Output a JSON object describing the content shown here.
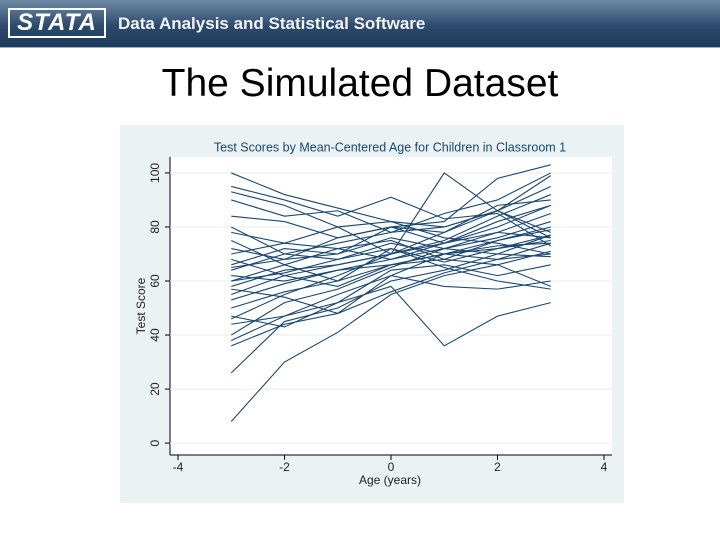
{
  "header": {
    "logo": "STATA",
    "tagline": "Data Analysis and Statistical Software"
  },
  "slide_title": "The Simulated Dataset",
  "chart_data": {
    "type": "line",
    "title": "Test Scores by Mean-Centered Age for Children in Classroom 1",
    "x_label": "Age (years)",
    "y_label": "Test Score",
    "x": [
      -3,
      -2,
      -1,
      0,
      1,
      2,
      3
    ],
    "xlim": [
      -4.15,
      4.15
    ],
    "xticks": [
      -4,
      -2,
      0,
      2,
      4
    ],
    "ylim": [
      -4.4,
      105.9
    ],
    "yticks": [
      0,
      20,
      40,
      60,
      80,
      100
    ],
    "grid": true,
    "series": [
      {
        "color": "#1a476f",
        "values": [
          8,
          30,
          41,
          55,
          62,
          66,
          71
        ]
      },
      {
        "color": "#1a476f",
        "values": [
          26,
          45,
          50,
          60,
          64,
          70,
          77
        ]
      },
      {
        "color": "#1a476f",
        "values": [
          36,
          44,
          48,
          56,
          63,
          68,
          74
        ]
      },
      {
        "color": "#1a476f",
        "values": [
          38,
          47,
          55,
          62,
          70,
          75,
          80
        ]
      },
      {
        "color": "#1a476f",
        "values": [
          40,
          52,
          57,
          65,
          72,
          78,
          85
        ]
      },
      {
        "color": "#1a476f",
        "values": [
          44,
          47,
          52,
          58,
          36,
          47,
          52
        ]
      },
      {
        "color": "#1a476f",
        "values": [
          46,
          55,
          62,
          70,
          75,
          84,
          92
        ]
      },
      {
        "color": "#1a476f",
        "values": [
          50,
          56,
          60,
          66,
          68,
          75,
          79
        ]
      },
      {
        "color": "#1a476f",
        "values": [
          53,
          59,
          64,
          68,
          72,
          76,
          82
        ]
      },
      {
        "color": "#1a476f",
        "values": [
          55,
          62,
          58,
          66,
          70,
          72,
          75
        ]
      },
      {
        "color": "#1a476f",
        "values": [
          58,
          64,
          66,
          70,
          74,
          80,
          88
        ]
      },
      {
        "color": "#1a476f",
        "values": [
          60,
          63,
          68,
          72,
          67,
          72,
          77
        ]
      },
      {
        "color": "#1a476f",
        "values": [
          62,
          60,
          64,
          66,
          70,
          68,
          70
        ]
      },
      {
        "color": "#1a476f",
        "values": [
          64,
          70,
          74,
          78,
          80,
          86,
          95
        ]
      },
      {
        "color": "#1a476f",
        "values": [
          66,
          72,
          70,
          76,
          72,
          70,
          69
        ]
      },
      {
        "color": "#1a476f",
        "values": [
          68,
          62,
          66,
          70,
          78,
          86,
          99
        ]
      },
      {
        "color": "#1a476f",
        "values": [
          70,
          74,
          72,
          68,
          74,
          78,
          76
        ]
      },
      {
        "color": "#1a476f",
        "values": [
          72,
          68,
          70,
          80,
          74,
          82,
          88
        ]
      },
      {
        "color": "#1a476f",
        "values": [
          75,
          66,
          60,
          72,
          65,
          60,
          57
        ]
      },
      {
        "color": "#1a476f",
        "values": [
          78,
          74,
          80,
          82,
          76,
          74,
          70
        ]
      },
      {
        "color": "#1a476f",
        "values": [
          80,
          70,
          68,
          74,
          70,
          73,
          74
        ]
      },
      {
        "color": "#1a476f",
        "values": [
          84,
          82,
          76,
          80,
          78,
          88,
          90
        ]
      },
      {
        "color": "#1a476f",
        "values": [
          90,
          84,
          86,
          78,
          85,
          90,
          100
        ]
      },
      {
        "color": "#1a476f",
        "values": [
          93,
          88,
          80,
          70,
          100,
          86,
          78
        ]
      },
      {
        "color": "#1a476f",
        "values": [
          95,
          90,
          84,
          91,
          83,
          85,
          73
        ]
      },
      {
        "color": "#1a476f",
        "values": [
          100,
          92,
          87,
          82,
          80,
          86,
          76
        ]
      },
      {
        "color": "#1a476f",
        "values": [
          57,
          54,
          48,
          62,
          58,
          57,
          60
        ]
      },
      {
        "color": "#1a476f",
        "values": [
          47,
          43,
          52,
          64,
          66,
          62,
          66
        ]
      },
      {
        "color": "#1a476f",
        "values": [
          60,
          66,
          72,
          75,
          68,
          66,
          58
        ]
      },
      {
        "color": "#1a476f",
        "values": [
          65,
          68,
          76,
          80,
          82,
          98,
          103
        ]
      }
    ]
  }
}
